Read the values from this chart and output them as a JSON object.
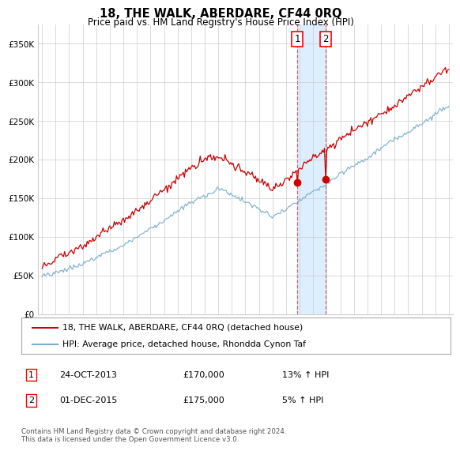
{
  "title": "18, THE WALK, ABERDARE, CF44 0RQ",
  "subtitle": "Price paid vs. HM Land Registry's House Price Index (HPI)",
  "footer": "Contains HM Land Registry data © Crown copyright and database right 2024.\nThis data is licensed under the Open Government Licence v3.0.",
  "legend_line1": "18, THE WALK, ABERDARE, CF44 0RQ (detached house)",
  "legend_line2": "HPI: Average price, detached house, Rhondda Cynon Taf",
  "sale1_label": "1",
  "sale1_date": "24-OCT-2013",
  "sale1_price": "£170,000",
  "sale1_hpi": "13% ↑ HPI",
  "sale2_label": "2",
  "sale2_date": "01-DEC-2015",
  "sale2_price": "£175,000",
  "sale2_hpi": "5% ↑ HPI",
  "sale1_year": 2013.82,
  "sale2_year": 2015.92,
  "red_color": "#cc0000",
  "blue_color": "#7aadcc",
  "highlight_color": "#ddeeff",
  "background_color": "#ffffff",
  "grid_color": "#cccccc",
  "ylim": [
    0,
    375000
  ],
  "xlim_start": 1994.7,
  "xlim_end": 2025.3
}
